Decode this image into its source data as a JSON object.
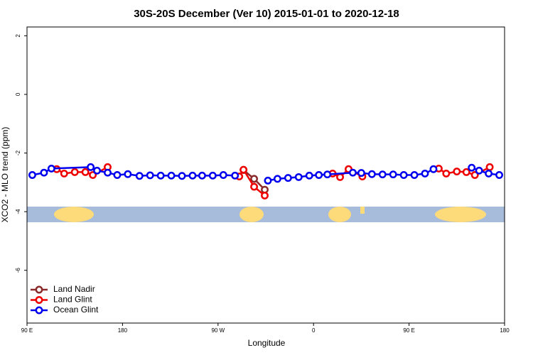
{
  "chart_data": {
    "type": "line",
    "title": "30S-20S December (Ver 10)   2015-01-01 to 2020-12-18",
    "x_label": "Longitude",
    "y_label": "XCO2 - MLO trend (ppm)",
    "xlim": [
      90,
      540
    ],
    "ylim": [
      -7.8,
      2.3
    ],
    "xticks": [
      {
        "value": 90,
        "label": "90 E"
      },
      180,
      {
        "value": 270,
        "label": "90 W"
      },
      {
        "value": 360,
        "label": "0"
      },
      {
        "value": 450,
        "label": "90 E"
      },
      {
        "value": 540,
        "label": "180"
      }
    ],
    "yticks": [
      -6,
      -4,
      -2,
      0,
      2
    ],
    "legend": "bottom-left",
    "series": [
      {
        "name": "Land Nadir",
        "color": "#8b2a2a",
        "x": [
          294,
          304,
          314
        ],
        "values": [
          -2.58,
          -2.88,
          -3.25
        ]
      },
      {
        "name": "Land Glint",
        "color": "#ee0000",
        "x": [
          118,
          125,
          135,
          145,
          152,
          166,
          null,
          290,
          294,
          304,
          314,
          null,
          378,
          385,
          393,
          406,
          null,
          478,
          485,
          495,
          504,
          512,
          526
        ],
        "values": [
          -2.55,
          -2.7,
          -2.65,
          -2.65,
          -2.75,
          -2.48,
          null,
          -2.8,
          -2.57,
          -3.15,
          -3.45,
          null,
          -2.7,
          -2.82,
          -2.55,
          -2.8,
          null,
          -2.53,
          -2.7,
          -2.63,
          -2.65,
          -2.75,
          -2.48
        ]
      },
      {
        "name": "Ocean Glint",
        "color": "#0000ee",
        "x": [
          95,
          106,
          113,
          150,
          156,
          166,
          175,
          185,
          196,
          206,
          216,
          226,
          236,
          246,
          255,
          265,
          275,
          286,
          null,
          317,
          326,
          336,
          346,
          356,
          365,
          373,
          397,
          405,
          415,
          425,
          435,
          445,
          455,
          465,
          473,
          null,
          509,
          516,
          525,
          535
        ],
        "values": [
          -2.75,
          -2.67,
          -2.53,
          -2.48,
          -2.6,
          -2.67,
          -2.75,
          -2.72,
          -2.78,
          -2.76,
          -2.77,
          -2.77,
          -2.78,
          -2.77,
          -2.77,
          -2.77,
          -2.75,
          -2.77,
          null,
          -2.94,
          -2.88,
          -2.85,
          -2.82,
          -2.77,
          -2.75,
          -2.73,
          -2.67,
          -2.68,
          -2.72,
          -2.73,
          -2.73,
          -2.75,
          -2.75,
          -2.7,
          -2.55,
          null,
          -2.5,
          -2.6,
          -2.7,
          -2.75
        ]
      }
    ]
  }
}
